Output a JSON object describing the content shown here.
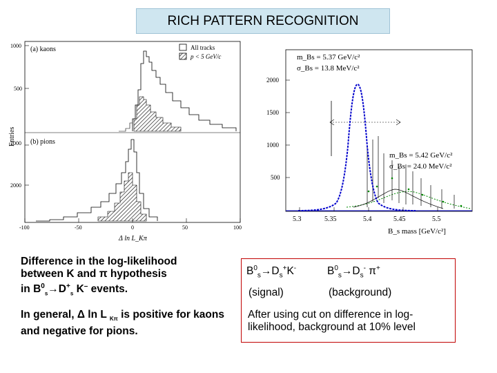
{
  "title": "RICH PATTERN RECOGNITION",
  "left_figure": {
    "panel_a_label": "(a)  kaons",
    "panel_b_label": "(b)  pions",
    "legend_all": "All tracks",
    "legend_p": "p < 5 GeV/c",
    "ylabel": "Entries",
    "xlabel": "Δ ln L_Kπ",
    "a_yticks": [
      "1000",
      "500"
    ],
    "b_yticks": [
      "1000",
      "2000"
    ],
    "xticks": [
      "-100",
      "-50",
      "0",
      "50",
      "100"
    ]
  },
  "right_figure": {
    "stat1_line1": "m_Bs = 5.37 GeV/c²",
    "stat1_line2": "σ_Bs = 13.8 MeV/c²",
    "stat2_line1": "m_Bs = 5.42 GeV/c²",
    "stat2_line2": "σ_Bs = 24.0 MeV/c²",
    "yticks": [
      "2000",
      "1500",
      "1000",
      "500"
    ],
    "xticks": [
      "5.3",
      "5.35",
      "5.4",
      "5.45",
      "5.5"
    ],
    "xlabel": "B_s mass [GeV/c²]"
  },
  "note": {
    "line1": "Difference in the log-likelihood",
    "line2_a": "between K and ",
    "line2_pi": "π",
    "line2_b": " hypothesis",
    "line3_a": "in B",
    "line3_sup1": "0",
    "line3_sub1": "s",
    "line3_arrow": "→",
    "line3_b": "D",
    "line3_sup2": "+",
    "line3_sub2": "s",
    "line3_c": " K",
    "line3_sup3": "–",
    "line3_d": " events.",
    "para2_a": "In general,  ",
    "para2_delta": "Δ",
    "para2_b": " ln L ",
    "para2_sub": "Kπ",
    "para2_c": " is positive for kaons and negative for pions."
  },
  "red_box": {
    "left_decay_a": "B",
    "left_decay_sup1": "0",
    "left_decay_sub1": "s",
    "left_decay_arrow": "→",
    "left_decay_b": "D",
    "left_decay_sub2": "s",
    "left_decay_sup2": "+",
    "left_decay_c": "K",
    "left_decay_sup3": "-",
    "right_decay_a": "B",
    "right_decay_sup1": "0",
    "right_decay_sub1": "s",
    "right_decay_arrow": "→",
    "right_decay_b": "D",
    "right_decay_sub2": "s",
    "right_decay_sup2": "-",
    "right_decay_c": " π",
    "right_decay_sup3": "+",
    "signal_label": "(signal)",
    "background_label": "(background)",
    "conclusion": "After using cut on difference in log-likelihood, background at 10% level"
  },
  "colors": {
    "title_bg": "#cfe6f0",
    "signal_fit": "#0000cc",
    "background_fit": "#008800",
    "box_border": "#c00000"
  }
}
